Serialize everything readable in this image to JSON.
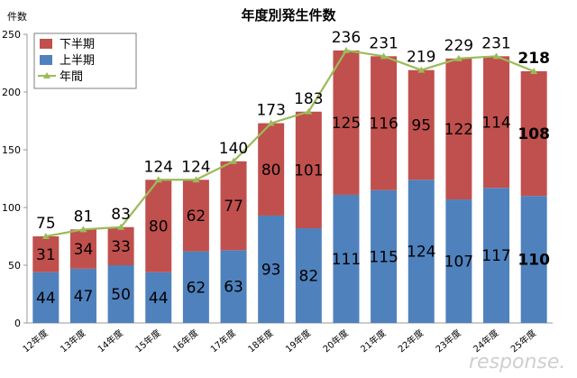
{
  "chart_data": {
    "type": "bar",
    "stacked": true,
    "title": "年度別発生件数",
    "ylabel": "件数",
    "xlabel": "",
    "ylim": [
      0,
      250
    ],
    "yticks": [
      0,
      50,
      100,
      150,
      200,
      250
    ],
    "grid": false,
    "legend_position": "top-left",
    "categories": [
      "12年度",
      "13年度",
      "14年度",
      "15年度",
      "16年度",
      "17年度",
      "18年度",
      "19年度",
      "20年度",
      "21年度",
      "22年度",
      "23年度",
      "24年度",
      "25年度"
    ],
    "series": [
      {
        "name": "上半期",
        "type": "bar",
        "color": "#4f81bd",
        "values": [
          44,
          47,
          50,
          44,
          62,
          63,
          93,
          82,
          111,
          115,
          124,
          107,
          117,
          110
        ]
      },
      {
        "name": "下半期",
        "type": "bar",
        "color": "#c0504d",
        "values": [
          31,
          34,
          33,
          80,
          62,
          77,
          80,
          101,
          125,
          116,
          95,
          122,
          114,
          108
        ]
      },
      {
        "name": "年間",
        "type": "line",
        "color": "#9bbb59",
        "values": [
          75,
          81,
          83,
          124,
          124,
          140,
          173,
          183,
          236,
          231,
          219,
          229,
          231,
          218
        ]
      }
    ],
    "legend": [
      {
        "name": "下半期",
        "color": "#c0504d",
        "kind": "box"
      },
      {
        "name": "上半期",
        "color": "#4f81bd",
        "kind": "box"
      },
      {
        "name": "年間",
        "color": "#9bbb59",
        "kind": "line"
      }
    ],
    "emphasized_category": "25年度"
  },
  "watermark": "response."
}
